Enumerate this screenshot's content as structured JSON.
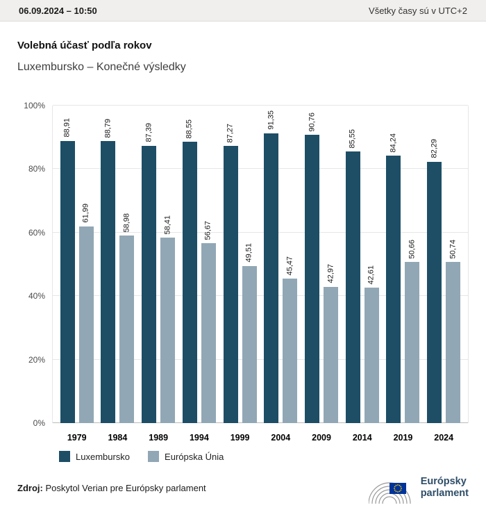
{
  "header": {
    "datetime": "06.09.2024 – 10:50",
    "timezone_note": "Všetky časy sú v UTC+2"
  },
  "chart_data": {
    "type": "bar",
    "title": "Volebná účasť podľa rokov",
    "subtitle": "Luxembursko – Konečné výsledky",
    "categories": [
      "1979",
      "1984",
      "1989",
      "1994",
      "1999",
      "2004",
      "2009",
      "2014",
      "2019",
      "2024"
    ],
    "series": [
      {
        "name": "Luxembursko",
        "color": "#1d4e66",
        "values": [
          88.91,
          88.79,
          87.39,
          88.55,
          87.27,
          91.35,
          90.76,
          85.55,
          84.24,
          82.29
        ]
      },
      {
        "name": "Európska Únia",
        "color": "#91a7b5",
        "values": [
          61.99,
          58.98,
          58.41,
          56.67,
          49.51,
          45.47,
          42.97,
          42.61,
          50.66,
          50.74
        ]
      }
    ],
    "ylim": [
      0,
      100
    ],
    "yticks": [
      "0%",
      "20%",
      "40%",
      "60%",
      "80%",
      "100%"
    ],
    "grid": true,
    "legend_position": "bottom",
    "value_labels": "rotated 90°, comma decimal separator"
  },
  "footer": {
    "source_label": "Zdroj:",
    "source_text": " Poskytol Verian pre Európsky parlament",
    "logo": {
      "line1": "Európsky",
      "line2": "parlament"
    }
  }
}
